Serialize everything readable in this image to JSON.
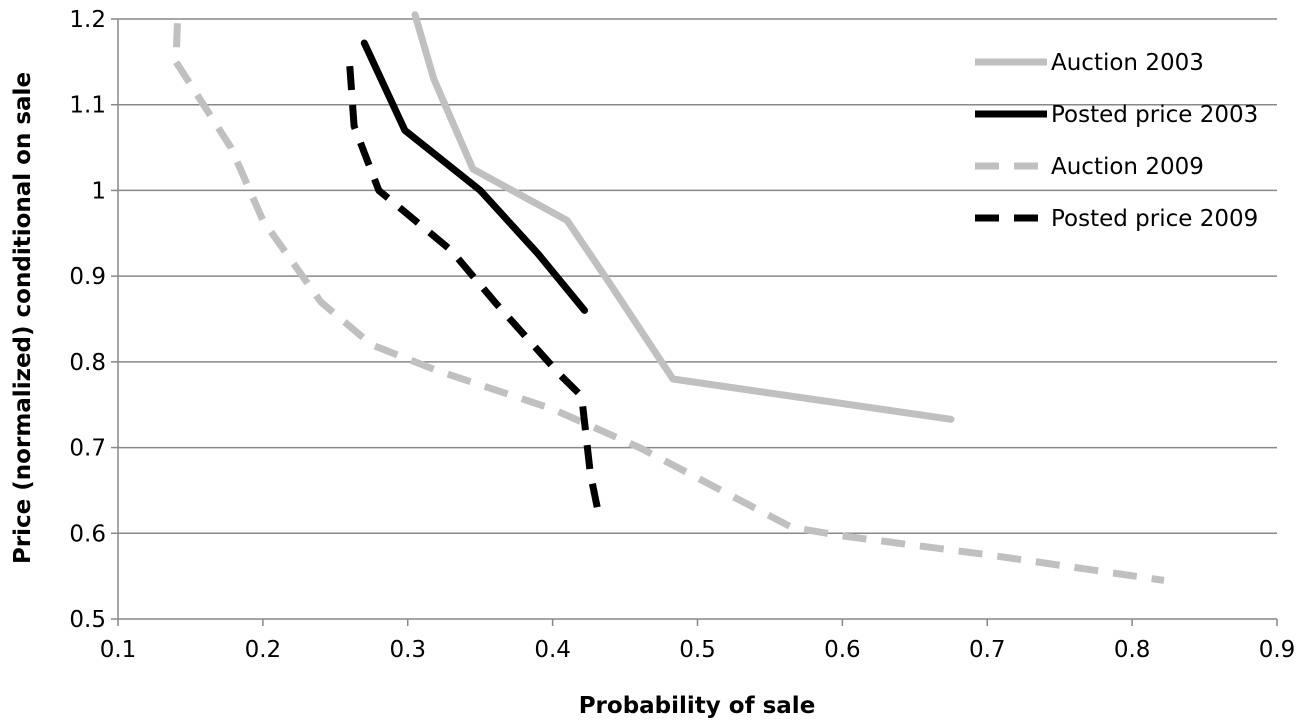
{
  "chart_data": {
    "type": "line",
    "title": "",
    "xlabel": "Probability of sale",
    "ylabel": "Price (normalized) conditional on sale",
    "xlim": [
      0.1,
      0.9
    ],
    "ylim": [
      0.5,
      1.2
    ],
    "xticks": [
      "0.1",
      "0.2",
      "0.3",
      "0.4",
      "0.5",
      "0.6",
      "0.7",
      "0.8",
      "0.9"
    ],
    "yticks": [
      "0.5",
      "0.6",
      "0.7",
      "0.8",
      "0.9",
      "1",
      "1.1",
      "1.2"
    ],
    "grid": "horizontal",
    "legend_position": "top-right",
    "series": [
      {
        "name": "Auction 2003",
        "color": "#c0c0c0",
        "dash": "solid",
        "points": [
          [
            0.305,
            1.205
          ],
          [
            0.318,
            1.13
          ],
          [
            0.345,
            1.025
          ],
          [
            0.41,
            0.965
          ],
          [
            0.44,
            0.89
          ],
          [
            0.483,
            0.78
          ],
          [
            0.675,
            0.733
          ]
        ]
      },
      {
        "name": "Posted price 2003",
        "color": "#000000",
        "dash": "solid",
        "points": [
          [
            0.27,
            1.172
          ],
          [
            0.298,
            1.07
          ],
          [
            0.35,
            1.0
          ],
          [
            0.39,
            0.926
          ],
          [
            0.422,
            0.86
          ]
        ]
      },
      {
        "name": "Auction 2009",
        "color": "#c0c0c0",
        "dash": "dashed",
        "points": [
          [
            0.141,
            1.195
          ],
          [
            0.14,
            1.15
          ],
          [
            0.178,
            1.05
          ],
          [
            0.2,
            0.965
          ],
          [
            0.24,
            0.87
          ],
          [
            0.275,
            0.82
          ],
          [
            0.32,
            0.79
          ],
          [
            0.4,
            0.745
          ],
          [
            0.46,
            0.7
          ],
          [
            0.565,
            0.607
          ],
          [
            0.6,
            0.597
          ],
          [
            0.7,
            0.575
          ],
          [
            0.822,
            0.545
          ]
        ]
      },
      {
        "name": "Posted price 2009",
        "color": "#000000",
        "dash": "dashed",
        "points": [
          [
            0.26,
            1.145
          ],
          [
            0.263,
            1.075
          ],
          [
            0.28,
            1.0
          ],
          [
            0.33,
            0.93
          ],
          [
            0.36,
            0.87
          ],
          [
            0.405,
            0.785
          ],
          [
            0.42,
            0.76
          ],
          [
            0.426,
            0.67
          ],
          [
            0.432,
            0.62
          ]
        ]
      }
    ]
  }
}
